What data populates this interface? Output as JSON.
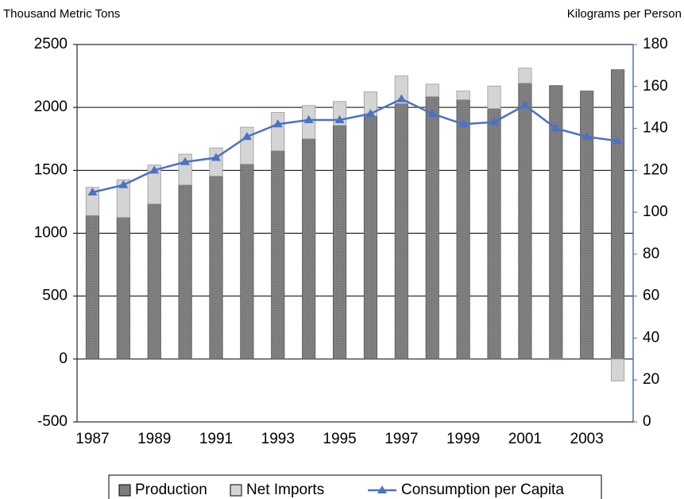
{
  "chart_data": {
    "type": "bar",
    "stacked": true,
    "y_label": "Thousand Metric Tons",
    "y2_label": "Kilograms per Person",
    "categories": [
      "1987",
      null,
      "1989",
      null,
      "1991",
      null,
      "1993",
      null,
      "1995",
      null,
      "1997",
      null,
      "1999",
      null,
      "2001",
      null,
      "2003",
      null
    ],
    "series": [
      {
        "name": "Production",
        "type": "bar",
        "color": "#7f7f7f",
        "values": [
          1140,
          1125,
          1232,
          1383,
          1453,
          1548,
          1655,
          1750,
          1857,
          1933,
          2030,
          2085,
          2060,
          1990,
          2192,
          2173,
          2130,
          2300
        ]
      },
      {
        "name": "Net Imports",
        "type": "bar",
        "color": "#d4d4d4",
        "values": [
          225,
          300,
          310,
          245,
          225,
          295,
          305,
          265,
          190,
          190,
          220,
          100,
          70,
          180,
          120,
          -5,
          0,
          -175
        ]
      },
      {
        "name": "Consumption per Capita",
        "type": "line",
        "axis": "y2",
        "color": "#4a72c4",
        "values": [
          109.5,
          113,
          120,
          124,
          126,
          136,
          142,
          144,
          144,
          147,
          154,
          147,
          142,
          143,
          151,
          140,
          136,
          134
        ]
      }
    ],
    "ylim": [
      -500,
      2500
    ],
    "yticks": [
      -500,
      0,
      500,
      1000,
      1500,
      2000,
      2500
    ],
    "y2lim": [
      0,
      180
    ],
    "y2ticks": [
      0,
      20,
      40,
      60,
      80,
      100,
      120,
      140,
      160,
      180
    ],
    "grid": true,
    "legend": "bottom"
  }
}
